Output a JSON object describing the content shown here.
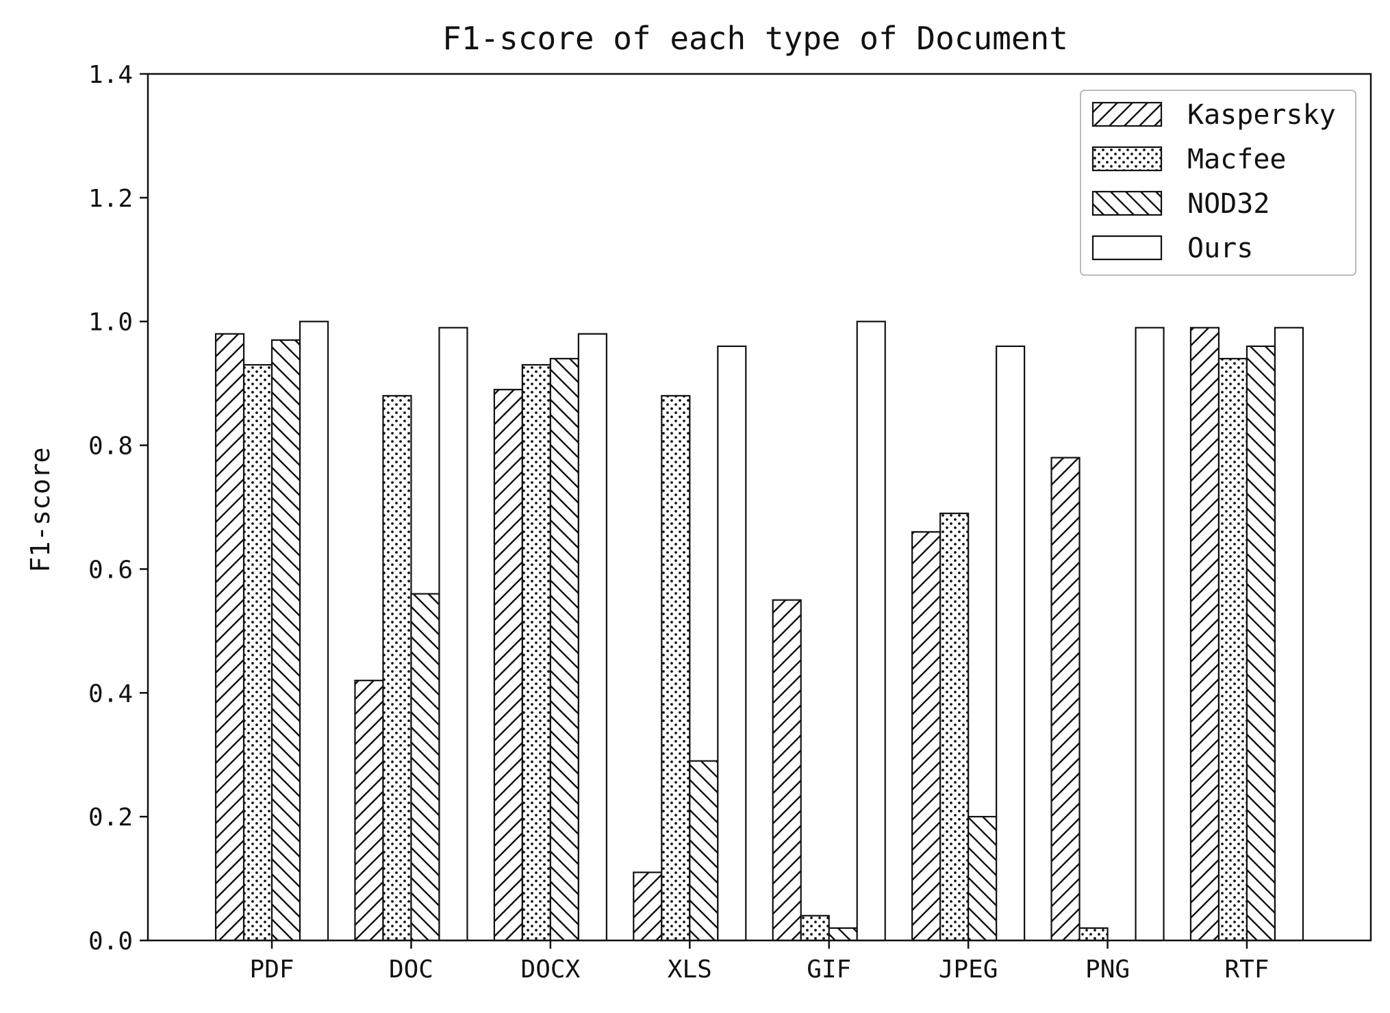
{
  "chart_data": {
    "type": "bar",
    "title": "F1-score of each type of Document",
    "xlabel": "",
    "ylabel": "F1-score",
    "categories": [
      "PDF",
      "DOC",
      "DOCX",
      "XLS",
      "GIF",
      "JPEG",
      "PNG",
      "RTF"
    ],
    "ylim": [
      0,
      1.4
    ],
    "yticks": [
      "0.0",
      "0.2",
      "0.4",
      "0.6",
      "0.8",
      "1.0",
      "1.2",
      "1.4"
    ],
    "grid": false,
    "legend_position": "top-right",
    "series": [
      {
        "name": "Kaspersky",
        "pattern": "diagonal-forward",
        "values": [
          0.98,
          0.42,
          0.89,
          0.11,
          0.55,
          0.66,
          0.78,
          0.99
        ]
      },
      {
        "name": "Macfee",
        "pattern": "dots",
        "values": [
          0.93,
          0.88,
          0.93,
          0.88,
          0.04,
          0.69,
          0.02,
          0.94
        ]
      },
      {
        "name": "NOD32",
        "pattern": "diagonal-back",
        "values": [
          0.97,
          0.56,
          0.94,
          0.29,
          0.02,
          0.2,
          0.0,
          0.96
        ]
      },
      {
        "name": "Ours",
        "pattern": "none",
        "values": [
          1.0,
          0.99,
          0.98,
          0.96,
          1.0,
          0.96,
          0.99,
          0.99
        ]
      }
    ],
    "colors": {
      "stroke": "#111111",
      "fill": "#ffffff"
    }
  }
}
